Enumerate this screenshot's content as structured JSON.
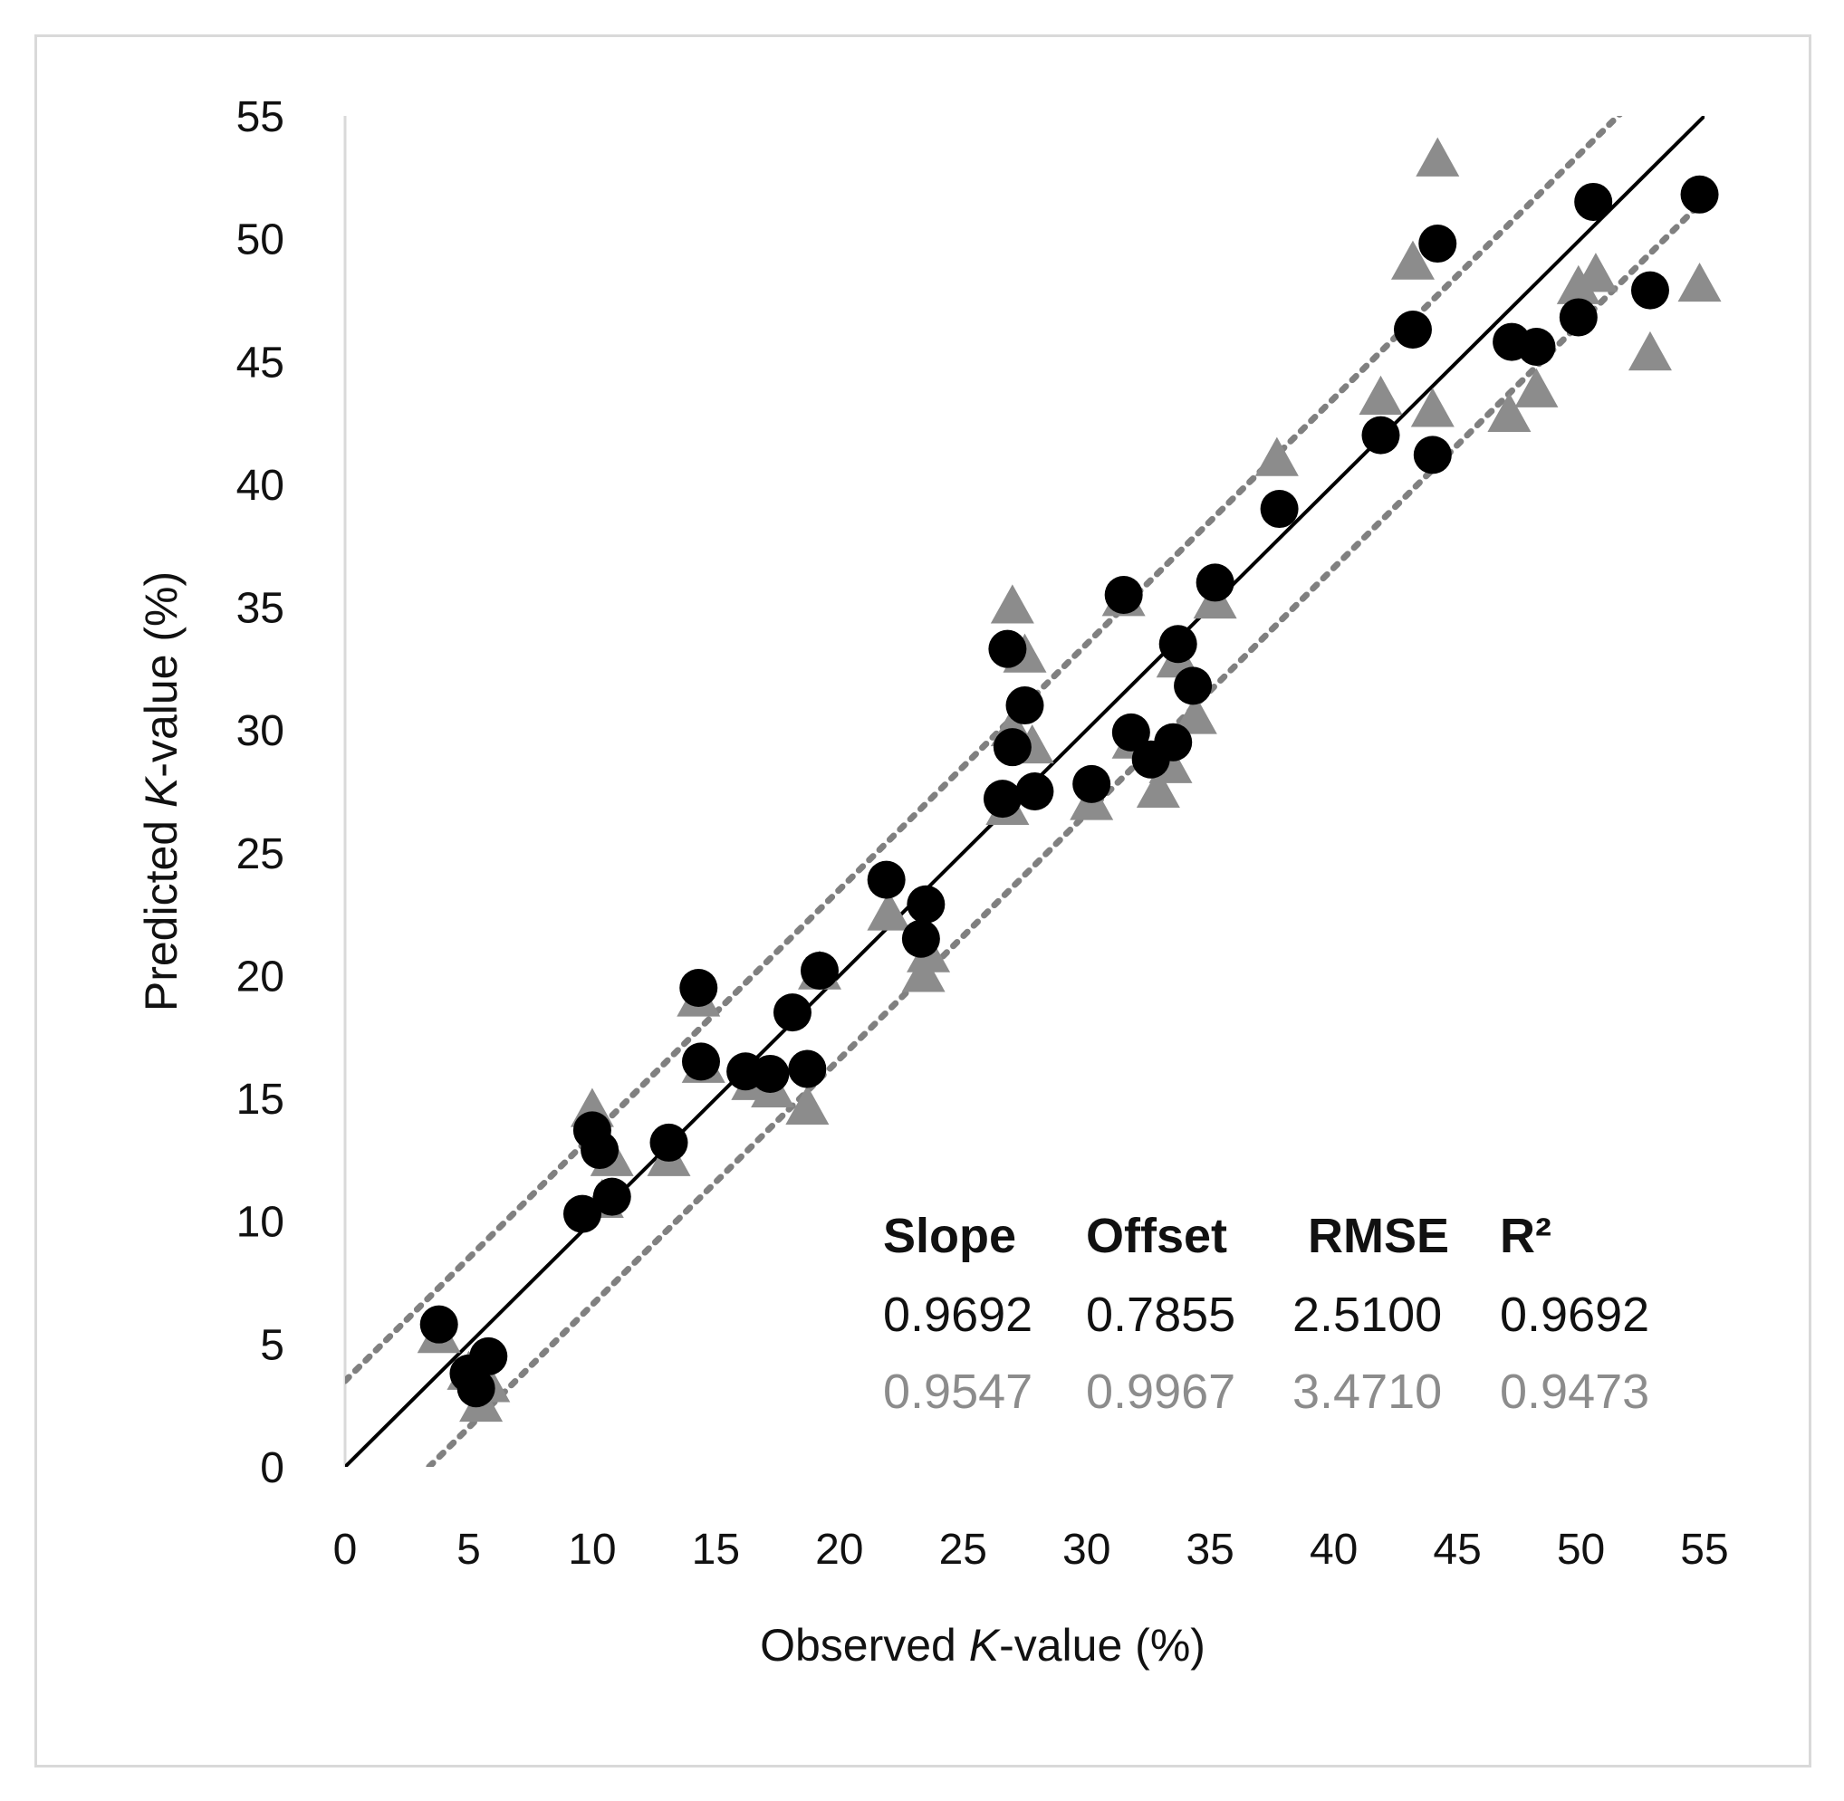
{
  "chart_data": {
    "type": "scatter",
    "title": "",
    "xlabel": {
      "prefix": "Observed ",
      "italic": "K",
      "suffix": "-value (%)"
    },
    "ylabel": {
      "prefix": "Predicted ",
      "italic": "K",
      "suffix": "-value (%)"
    },
    "xlim": [
      0,
      55
    ],
    "ylim": [
      0,
      55
    ],
    "xticks": [
      0,
      5,
      10,
      15,
      20,
      25,
      30,
      35,
      40,
      45,
      50,
      55
    ],
    "yticks": [
      0,
      5,
      10,
      15,
      20,
      25,
      30,
      35,
      40,
      45,
      50,
      55
    ],
    "grid": false,
    "lines": [
      {
        "name": "1:1 line",
        "style": "solid",
        "color": "#000000",
        "points": [
          [
            0,
            0
          ],
          [
            55,
            55
          ]
        ]
      },
      {
        "name": "upper bound",
        "style": "dotted",
        "color": "#808080",
        "points": [
          [
            0,
            3.5
          ],
          [
            52.5,
            56
          ]
        ]
      },
      {
        "name": "lower bound",
        "style": "dotted",
        "color": "#808080",
        "points": [
          [
            3.4,
            0
          ],
          [
            55,
            51.6
          ]
        ]
      }
    ],
    "series": [
      {
        "name": "circles",
        "marker": "circle",
        "color": "#000000",
        "x": [
          3.8,
          5.0,
          5.8,
          5.3,
          9.6,
          10.0,
          10.3,
          10.8,
          13.1,
          14.3,
          14.4,
          16.2,
          17.2,
          18.1,
          18.7,
          19.2,
          21.9,
          23.5,
          23.3,
          26.6,
          26.8,
          27.0,
          27.5,
          27.9,
          30.2,
          31.5,
          31.8,
          32.6,
          33.5,
          33.7,
          34.3,
          35.2,
          37.8,
          41.9,
          43.2,
          44.0,
          44.2,
          47.2,
          48.2,
          49.9,
          50.5,
          52.8,
          54.8
        ],
        "y": [
          5.8,
          3.8,
          4.5,
          3.2,
          10.3,
          13.7,
          12.9,
          11.0,
          13.2,
          19.5,
          16.5,
          16.1,
          16.0,
          18.5,
          16.2,
          20.2,
          23.9,
          22.9,
          21.5,
          27.2,
          33.3,
          29.3,
          31.0,
          27.5,
          27.8,
          35.5,
          29.9,
          28.8,
          29.5,
          33.5,
          31.8,
          36.0,
          39.0,
          42.0,
          46.3,
          41.2,
          49.8,
          45.8,
          45.6,
          46.8,
          51.5,
          47.9,
          51.8
        ]
      },
      {
        "name": "triangles",
        "marker": "triangle",
        "color": "#8c8c8c",
        "x": [
          3.8,
          5.0,
          5.5,
          5.8,
          10.0,
          10.4,
          10.8,
          13.1,
          14.3,
          14.5,
          16.5,
          17.3,
          18.7,
          19.2,
          22.0,
          23.4,
          23.6,
          26.8,
          27.0,
          27.0,
          27.5,
          27.8,
          30.2,
          31.5,
          31.9,
          32.9,
          33.4,
          33.7,
          34.4,
          35.2,
          37.7,
          41.9,
          43.2,
          44.0,
          44.2,
          47.1,
          48.2,
          49.9,
          50.6,
          52.8,
          54.8
        ],
        "y": [
          5.3,
          3.8,
          2.5,
          3.3,
          14.5,
          10.8,
          12.5,
          12.5,
          19.0,
          16.3,
          15.6,
          15.3,
          14.6,
          20.1,
          22.5,
          20.0,
          20.8,
          26.8,
          30.0,
          35.0,
          33.0,
          29.3,
          27.0,
          35.3,
          29.5,
          27.5,
          28.5,
          32.8,
          30.5,
          35.2,
          41.0,
          43.5,
          49.0,
          43.0,
          53.2,
          42.8,
          43.8,
          48.0,
          48.5,
          45.3,
          48.1
        ]
      }
    ],
    "stats_table": {
      "headers": [
        "Slope",
        "Offset",
        "RMSE",
        "R²"
      ],
      "rows": [
        {
          "series": "circles",
          "color": "#000000",
          "values": [
            "0.9692",
            "0.7855",
            "2.5100",
            "0.9692"
          ]
        },
        {
          "series": "triangles",
          "color": "#8c8c8c",
          "values": [
            "0.9547",
            "0.9967",
            "3.4710",
            "0.9473"
          ]
        }
      ]
    }
  }
}
